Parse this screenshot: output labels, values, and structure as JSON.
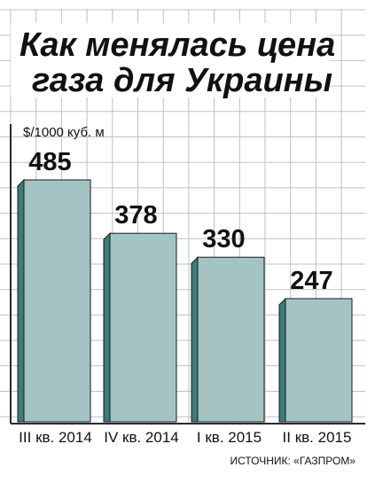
{
  "chart_data": {
    "type": "bar",
    "title_lines": [
      "Как менялась цена",
      "газа для Украины"
    ],
    "unit_label": "$/1000 куб. м",
    "categories": [
      "III кв. 2014",
      "IV кв. 2014",
      "I кв. 2015",
      "II кв. 2015"
    ],
    "values": [
      485,
      378,
      330,
      247
    ],
    "value_labels": [
      "485",
      "378",
      "330",
      "247"
    ],
    "source": "ИСТОЧНИК: «ГАЗПРОМ»",
    "ylim": [
      0,
      485
    ],
    "grid": true,
    "colors": {
      "bar_face": "#a3c4c3",
      "bar_edge": "#3b7e79",
      "bar_outline": "#1a1a1a",
      "grid": "#bfbfbf",
      "frame": "#2a2a2a"
    }
  }
}
